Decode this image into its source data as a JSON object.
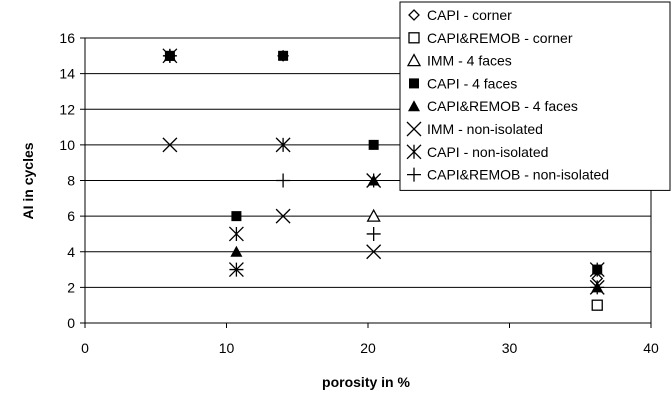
{
  "chart_data": {
    "type": "scatter",
    "xlabel": "porosity in %",
    "ylabel": "AI in cycles",
    "xlim": [
      0,
      40
    ],
    "ylim": [
      0,
      16
    ],
    "xticks": [
      "0",
      "10",
      "20",
      "30",
      "40"
    ],
    "yticks": [
      "0",
      "2",
      "4",
      "6",
      "8",
      "10",
      "12",
      "14",
      "16"
    ],
    "grid": "horizontal",
    "legend_position": "top-right",
    "series": [
      {
        "name": "CAPI - corner",
        "marker": "diamond-open",
        "x": [
          6,
          14,
          36.2
        ],
        "y": [
          15,
          15,
          2.5
        ]
      },
      {
        "name": "CAPI&REMOB - corner",
        "marker": "square-open",
        "x": [
          36.2
        ],
        "y": [
          1
        ]
      },
      {
        "name": "IMM - 4 faces",
        "marker": "triangle-open",
        "x": [
          20.4
        ],
        "y": [
          6
        ]
      },
      {
        "name": "CAPI - 4 faces",
        "marker": "square-filled",
        "x": [
          6,
          10.7,
          14,
          20.4,
          36.2
        ],
        "y": [
          15,
          6,
          15,
          10,
          3
        ]
      },
      {
        "name": "CAPI&REMOB - 4 faces",
        "marker": "triangle-filled",
        "x": [
          6,
          10.7,
          20.4,
          36.2
        ],
        "y": [
          15,
          4,
          8,
          2
        ]
      },
      {
        "name": "IMM - non-isolated",
        "marker": "x",
        "x": [
          6,
          10.7,
          14,
          20.4,
          36.2
        ],
        "y": [
          10,
          3,
          6,
          4,
          2
        ]
      },
      {
        "name": "CAPI - non-isolated",
        "marker": "asterisk",
        "x": [
          6,
          10.7,
          14,
          20.4,
          36.2
        ],
        "y": [
          15,
          5,
          10,
          8,
          3
        ]
      },
      {
        "name": "CAPI&REMOB - non-isolated",
        "marker": "plus",
        "x": [
          6,
          10.7,
          14,
          20.4,
          36.2
        ],
        "y": [
          15,
          3,
          8,
          5,
          2
        ]
      }
    ]
  }
}
